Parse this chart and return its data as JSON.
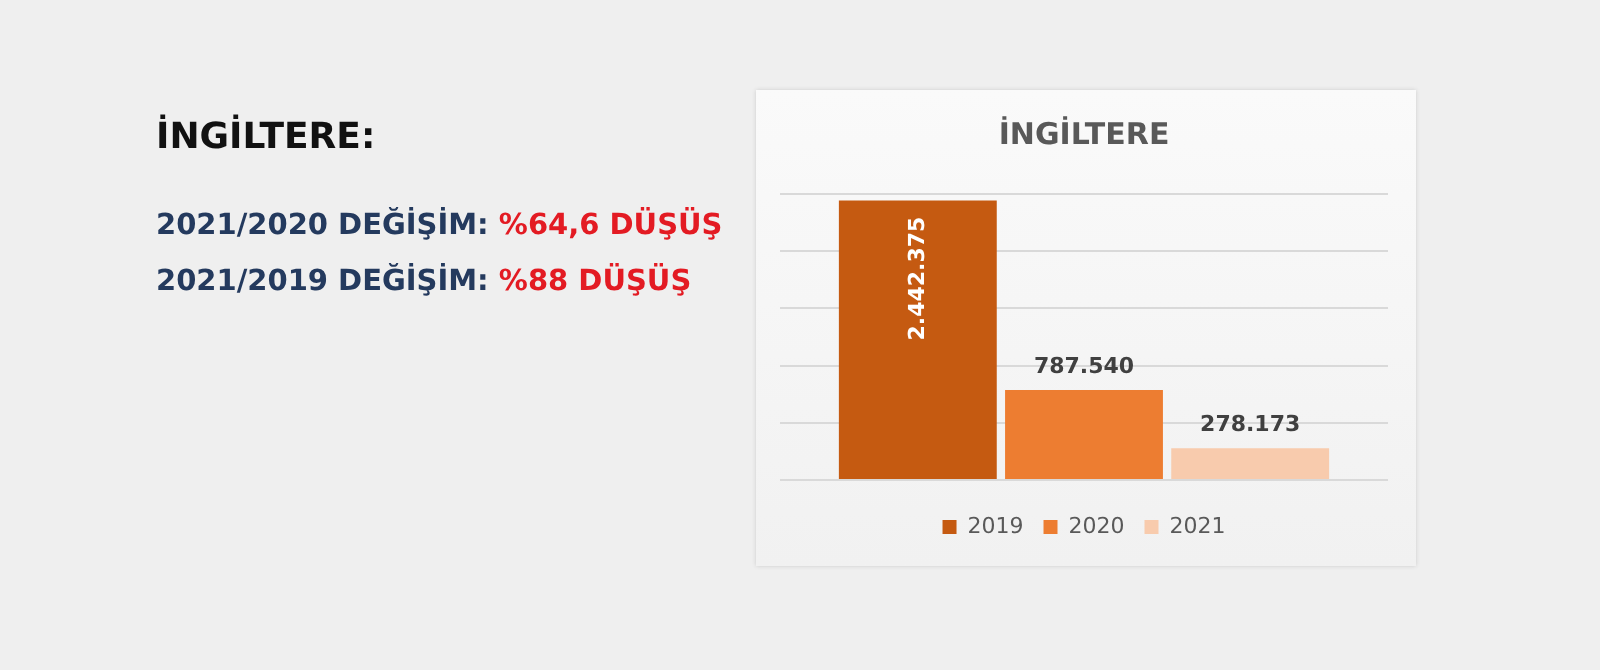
{
  "chart_data": {
    "type": "bar",
    "title": "İNGİLTERE",
    "categories": [
      null
    ],
    "series": [
      {
        "name": "2019",
        "color": "#c55a11",
        "values": [
          2442375
        ],
        "value_labels": [
          "2.442.375"
        ]
      },
      {
        "name": "2020",
        "color": "#ed7d31",
        "values": [
          787540
        ],
        "value_labels": [
          "787.540"
        ]
      },
      {
        "name": "2021",
        "color": "#f8cbad",
        "values": [
          278173
        ],
        "value_labels": [
          "278.173"
        ]
      }
    ],
    "grid": "y",
    "legend": "bottom",
    "tick_labels": false,
    "annotations": [
      "İNGİLTERE:",
      "2021/2020 DEĞİŞİM: %64,6 DÜŞÜŞ",
      "2021/2019 DEĞİŞİM: %88 DÜŞÜŞ"
    ]
  }
}
